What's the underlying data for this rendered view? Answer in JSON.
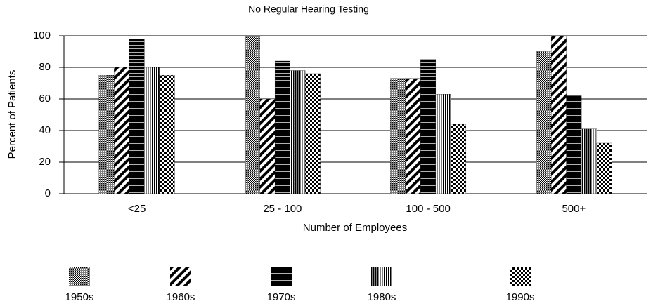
{
  "chart_data": {
    "type": "bar",
    "title": "No Regular Hearing Testing",
    "x_label": "Number of Employees",
    "y_label": "Percent of Patients",
    "categories": [
      "<25",
      "25 - 100",
      "100 - 500",
      "500+"
    ],
    "series": [
      {
        "name": "1950s",
        "color": "#000000",
        "pattern": "stipple",
        "values": [
          75,
          100,
          73,
          90
        ]
      },
      {
        "name": "1960s",
        "color": "#000000",
        "pattern": "diagonal",
        "values": [
          80,
          60,
          73,
          100
        ]
      },
      {
        "name": "1970s",
        "color": "#000000",
        "pattern": "solid-lines",
        "values": [
          98,
          84,
          85,
          62
        ]
      },
      {
        "name": "1980s",
        "color": "#000000",
        "pattern": "vertical",
        "values": [
          80,
          78,
          63,
          41
        ]
      },
      {
        "name": "1990s",
        "color": "#000000",
        "pattern": "checker",
        "values": [
          75,
          76,
          44,
          32
        ]
      }
    ],
    "ylim": [
      0,
      100
    ],
    "yticks": [
      0,
      20,
      40,
      60,
      80,
      100
    ],
    "grid": true
  }
}
